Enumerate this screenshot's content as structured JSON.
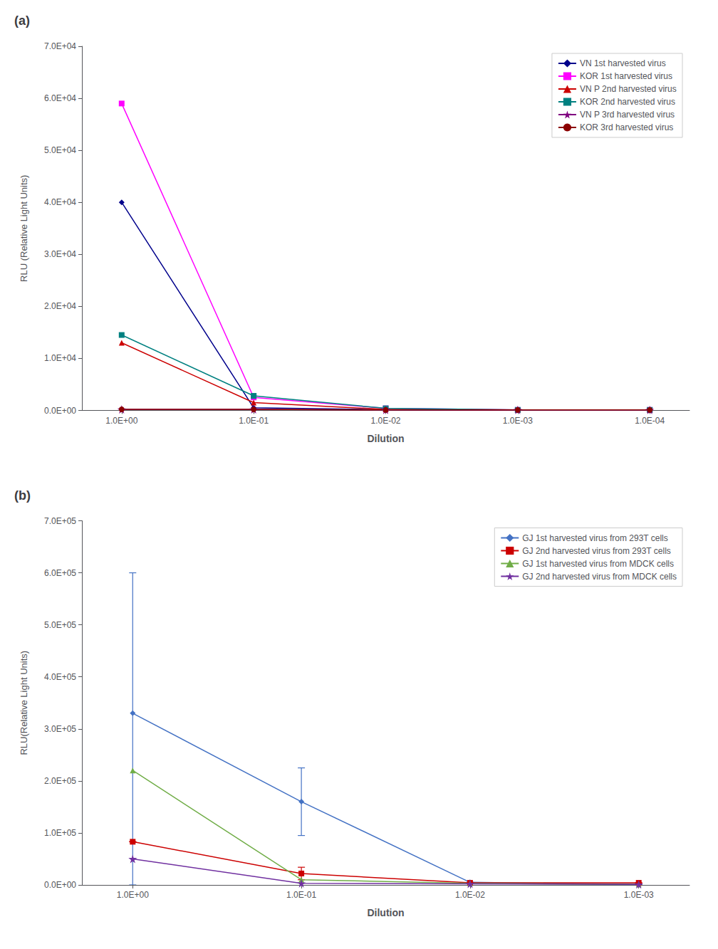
{
  "chart_data": [
    {
      "type": "line",
      "title": "(a)",
      "xlabel": "Dilution",
      "ylabel": "RLU (Relative Light Units)",
      "log": "x",
      "grid": false,
      "legend": "upper right",
      "x": [
        1.0,
        0.1,
        0.01,
        0.001,
        0.0001
      ],
      "xlim": [
        2.0,
        5e-05
      ],
      "xticks": [
        {
          "value": 1.0,
          "label": "1.0E+00"
        },
        {
          "value": 0.1,
          "label": "1.0E-01"
        },
        {
          "value": 0.01,
          "label": "1.0E-02"
        },
        {
          "value": 0.001,
          "label": "1.0E-03"
        },
        {
          "value": 0.0001,
          "label": "1.0E-04"
        }
      ],
      "ylim": [
        0,
        70000
      ],
      "yticks": [
        {
          "value": 0,
          "label": "0.0E+00"
        },
        {
          "value": 10000,
          "label": "1.0E+04"
        },
        {
          "value": 20000,
          "label": "2.0E+04"
        },
        {
          "value": 30000,
          "label": "3.0E+04"
        },
        {
          "value": 40000,
          "label": "4.0E+04"
        },
        {
          "value": 50000,
          "label": "5.0E+04"
        },
        {
          "value": 60000,
          "label": "6.0E+04"
        },
        {
          "value": 70000,
          "label": "7.0E+04"
        }
      ],
      "series": [
        {
          "name": "VN 1st harvested virus",
          "color": "#00008B",
          "marker": "diamond",
          "line_style": "solid",
          "values": [
            40000,
            500,
            150,
            100,
            100
          ]
        },
        {
          "name": "KOR 1st harvested virus",
          "color": "#FF00FF",
          "marker": "square",
          "line_style": "solid",
          "values": [
            59000,
            2500,
            400,
            100,
            100
          ]
        },
        {
          "name": "VN P 2nd harvested virus",
          "color": "#CC0000",
          "marker": "triangle",
          "line_style": "solid",
          "values": [
            13000,
            1500,
            200,
            100,
            100
          ]
        },
        {
          "name": "KOR 2nd harvested virus",
          "color": "#008080",
          "marker": "square",
          "line_style": "solid",
          "values": [
            14500,
            2800,
            400,
            100,
            100
          ]
        },
        {
          "name": "VN P 3rd harvested virus",
          "color": "#800080",
          "marker": "star",
          "line_style": "solid",
          "values": [
            200,
            200,
            100,
            100,
            100
          ]
        },
        {
          "name": "KOR 3rd harvested virus",
          "color": "#8B0000",
          "marker": "circle",
          "line_style": "solid",
          "values": [
            200,
            200,
            100,
            100,
            100
          ]
        }
      ]
    },
    {
      "type": "line",
      "title": "(b)",
      "xlabel": "Dilution",
      "ylabel": "RLU(Relative Light Units)",
      "log": "x",
      "grid": false,
      "legend": "upper right",
      "x": [
        1.0,
        0.1,
        0.01,
        0.001
      ],
      "xlim": [
        2.0,
        0.0005
      ],
      "xticks": [
        {
          "value": 1.0,
          "label": "1.0E+00"
        },
        {
          "value": 0.1,
          "label": "1.0E-01"
        },
        {
          "value": 0.01,
          "label": "1.0E-02"
        },
        {
          "value": 0.001,
          "label": "1.0E-03"
        }
      ],
      "ylim": [
        0,
        700000
      ],
      "yticks": [
        {
          "value": 0,
          "label": "0.0E+00"
        },
        {
          "value": 100000,
          "label": "1.0E+05"
        },
        {
          "value": 200000,
          "label": "2.0E+05"
        },
        {
          "value": 300000,
          "label": "3.0E+05"
        },
        {
          "value": 400000,
          "label": "4.0E+05"
        },
        {
          "value": 500000,
          "label": "5.0E+05"
        },
        {
          "value": 600000,
          "label": "6.0E+05"
        },
        {
          "value": 700000,
          "label": "7.0E+05"
        }
      ],
      "series": [
        {
          "name": "GJ 1st harvested virus from 293T cells",
          "color": "#4472C4",
          "marker": "diamond",
          "line_style": "solid",
          "values": [
            330000,
            160000,
            5000,
            1000
          ],
          "error_low": [
            330000,
            65000,
            0,
            0
          ],
          "error_high": [
            270000,
            65000,
            0,
            0
          ]
        },
        {
          "name": "GJ 2nd harvested virus from 293T cells",
          "color": "#CC0000",
          "marker": "square",
          "line_style": "solid",
          "values": [
            83000,
            22000,
            4000,
            4000
          ],
          "error_low": [
            0,
            12000,
            0,
            0
          ],
          "error_high": [
            0,
            12000,
            0,
            0
          ]
        },
        {
          "name": "GJ 1st harvested virus from MDCK cells",
          "color": "#70AD47",
          "marker": "triangle",
          "line_style": "solid",
          "values": [
            220000,
            10000,
            3000,
            1000
          ],
          "error_low": [
            0,
            0,
            0,
            0
          ],
          "error_high": [
            0,
            0,
            0,
            0
          ]
        },
        {
          "name": "GJ 2nd harvested virus from MDCK cells",
          "color": "#7030A0",
          "marker": "star",
          "line_style": "solid",
          "values": [
            50000,
            3000,
            2000,
            1000
          ],
          "error_low": [
            0,
            0,
            0,
            0
          ],
          "error_high": [
            0,
            0,
            0,
            0
          ]
        }
      ]
    }
  ]
}
